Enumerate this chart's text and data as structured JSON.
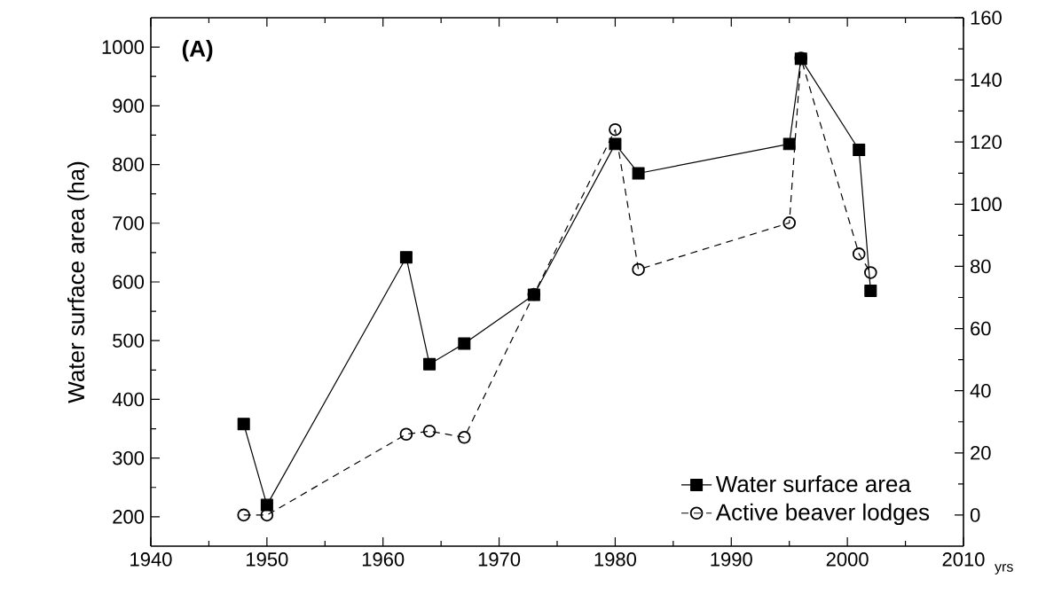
{
  "chart_data": {
    "type": "line",
    "x": [
      1948,
      1950,
      1962,
      1964,
      1967,
      1973,
      1980,
      1982,
      1995,
      1996,
      2001,
      2002
    ],
    "series": [
      {
        "name": "Water surface area",
        "color": "#000000",
        "marker": "square",
        "line_style": "solid",
        "values": [
          358,
          220,
          642,
          460,
          495,
          578,
          835,
          785,
          835,
          980,
          825,
          585
        ]
      },
      {
        "name": "Active beaver lodges",
        "color": "#000000",
        "marker": "circle",
        "line_style": "dashed",
        "axis": "y2",
        "values": [
          0,
          0,
          26,
          27,
          25,
          71,
          124,
          79,
          94,
          147,
          84,
          78
        ]
      }
    ],
    "xlabel": "yrs",
    "ylabel": "Water surface area (ha)",
    "xlim": [
      1940,
      2010
    ],
    "xticks": [
      1940,
      1950,
      1960,
      1970,
      1980,
      1990,
      2000,
      2010
    ],
    "ylim": [
      150,
      1050
    ],
    "yticks": [
      200,
      300,
      400,
      500,
      600,
      700,
      800,
      900,
      1000
    ],
    "y2lim": [
      -10,
      160
    ],
    "y2ticks": [
      0,
      20,
      40,
      60,
      80,
      100,
      120,
      140,
      160
    ],
    "annotations": [
      "(A)"
    ],
    "legend": "bottom right",
    "grid": false
  }
}
